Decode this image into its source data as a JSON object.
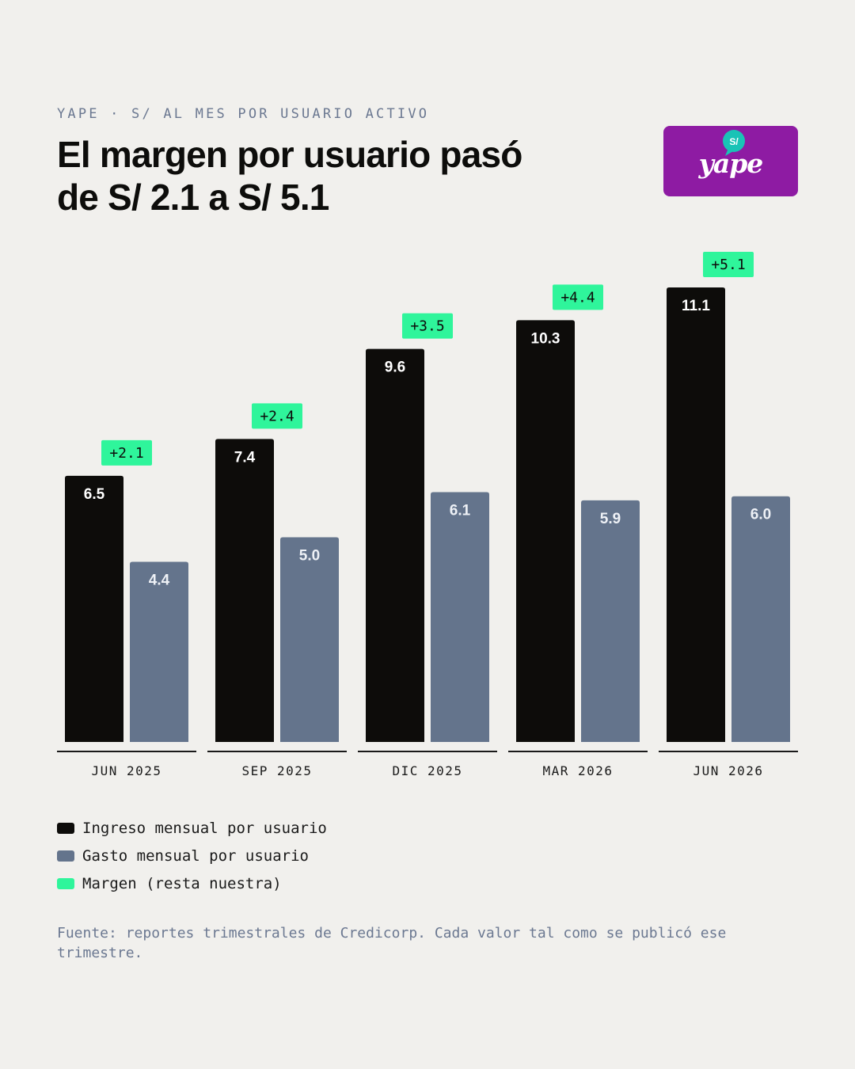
{
  "header": {
    "eyebrow": "YAPE · S/ AL MES POR USUARIO ACTIVO",
    "title": "El margen por usuario pasó de S/ 2.1 a S/ 5.1"
  },
  "logo": {
    "badge": "S/",
    "wordmark": "yape",
    "background_color": "#8e1ba3",
    "badge_color": "#19c3b6"
  },
  "colors": {
    "ingreso": "#0d0c0a",
    "gasto": "#64748c",
    "margen": "#2ff59b",
    "background": "#f1f0ed"
  },
  "chart_data": {
    "type": "bar",
    "title": "El margen por usuario pasó de S/ 2.1 a S/ 5.1",
    "subtitle": "YAPE · S/ AL MES POR USUARIO ACTIVO",
    "categories": [
      "JUN 2025",
      "SEP 2025",
      "DIC 2025",
      "MAR 2026",
      "JUN 2026"
    ],
    "series": [
      {
        "name": "Ingreso mensual por usuario",
        "values": [
          6.5,
          7.4,
          9.6,
          10.3,
          11.1
        ]
      },
      {
        "name": "Gasto mensual por usuario",
        "values": [
          4.4,
          5.0,
          6.1,
          5.9,
          6.0
        ]
      }
    ],
    "margin_labels": [
      "+2.1",
      "+2.4",
      "+3.5",
      "+4.4",
      "+5.1"
    ],
    "margin_series_name": "Margen (resta nuestra)",
    "ylim": [
      0,
      11.1
    ],
    "grid": false,
    "legend_position": "bottom-left"
  },
  "legend": {
    "items": [
      {
        "label": "Ingreso mensual por usuario",
        "color": "#0d0c0a"
      },
      {
        "label": "Gasto mensual por usuario",
        "color": "#64748c"
      },
      {
        "label": "Margen (resta nuestra)",
        "color": "#2ff59b"
      }
    ]
  },
  "footnote": "Fuente: reportes trimestrales de Credicorp. Cada valor tal como se publicó ese trimestre."
}
